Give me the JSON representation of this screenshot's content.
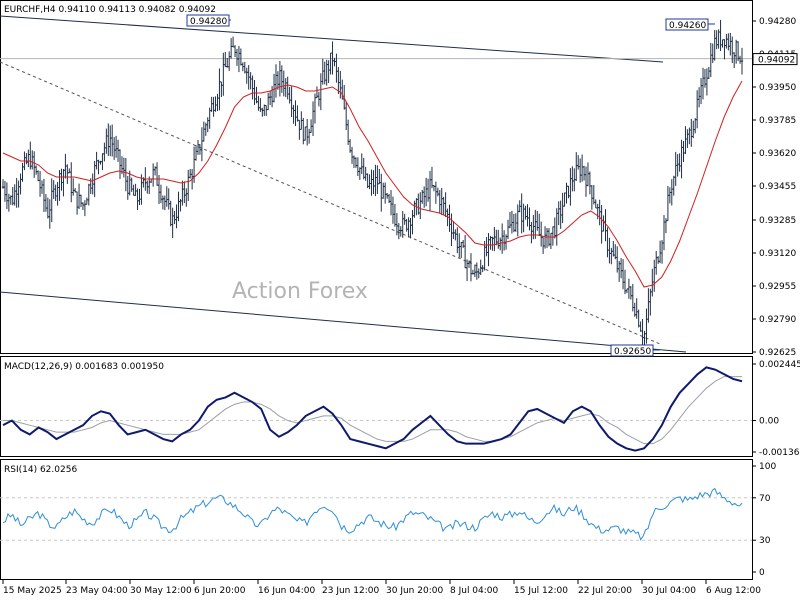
{
  "header": {
    "symbol_line": "EURCHF,H4  0.94110 0.94113 0.94082 0.94092"
  },
  "watermark": "Action Forex",
  "colors": {
    "bars": "#1f2f46",
    "ma": "#d11f1f",
    "macd": "#0f1a6b",
    "signal": "#9aa0a6",
    "rsi": "#2f8fd8",
    "grid": "#c8c8c8",
    "price_box": "#1f3a93"
  },
  "chart_data": [
    {
      "type": "bar",
      "panel": "price",
      "title": "EURCHF,H4",
      "ohlc_last": {
        "open": 0.9411,
        "high": 0.94113,
        "low": 0.94082,
        "close": 0.94092
      },
      "ylim": [
        0.92625,
        0.9428
      ],
      "y_ticks": [
        "0.94280",
        "0.94115",
        "0.93950",
        "0.93785",
        "0.93620",
        "0.93455",
        "0.93285",
        "0.93120",
        "0.92955",
        "0.92790",
        "0.92625"
      ],
      "y_tick_values": [
        0.9428,
        0.94115,
        0.9395,
        0.93785,
        0.9362,
        0.93455,
        0.93285,
        0.9312,
        0.92955,
        0.9279,
        0.92625
      ],
      "current_price": "0.94092",
      "annotations": [
        {
          "label": "0.94280",
          "x": "6 Jun 20:00",
          "y": 0.9428
        },
        {
          "label": "0.94260",
          "x": "6 Aug 12:00",
          "y": 0.9426
        },
        {
          "label": "0.92650",
          "x": "30 Jul 04:00",
          "y": 0.9265
        }
      ],
      "close_path": [
        0.9345,
        0.9338,
        0.9352,
        0.936,
        0.9348,
        0.9332,
        0.9346,
        0.9356,
        0.934,
        0.9336,
        0.935,
        0.9362,
        0.937,
        0.9358,
        0.9346,
        0.9338,
        0.9348,
        0.9352,
        0.934,
        0.9328,
        0.9338,
        0.935,
        0.9364,
        0.938,
        0.9392,
        0.9405,
        0.9415,
        0.9408,
        0.9395,
        0.938,
        0.939,
        0.94,
        0.9395,
        0.938,
        0.937,
        0.9385,
        0.94,
        0.941,
        0.939,
        0.9365,
        0.9355,
        0.9345,
        0.9348,
        0.9338,
        0.933,
        0.9325,
        0.9332,
        0.9338,
        0.9345,
        0.934,
        0.933,
        0.9318,
        0.9308,
        0.93,
        0.931,
        0.9318,
        0.932,
        0.9325,
        0.9332,
        0.933,
        0.9322,
        0.9318,
        0.9325,
        0.9338,
        0.935,
        0.9355,
        0.9345,
        0.933,
        0.9315,
        0.9305,
        0.9295,
        0.9285,
        0.927,
        0.93,
        0.932,
        0.9345,
        0.936,
        0.937,
        0.9385,
        0.9402,
        0.9418,
        0.942,
        0.9415,
        0.941
      ],
      "ma_path": [
        0.9362,
        0.936,
        0.9358,
        0.9358,
        0.9356,
        0.9352,
        0.935,
        0.935,
        0.935,
        0.9349,
        0.9348,
        0.935,
        0.9352,
        0.9353,
        0.9352,
        0.935,
        0.9349,
        0.9349,
        0.9349,
        0.9348,
        0.9347,
        0.9348,
        0.9352,
        0.9358,
        0.9366,
        0.9375,
        0.9385,
        0.939,
        0.9392,
        0.9392,
        0.9393,
        0.9395,
        0.9396,
        0.9395,
        0.9393,
        0.9393,
        0.9394,
        0.9395,
        0.9392,
        0.9384,
        0.9375,
        0.9368,
        0.936,
        0.9352,
        0.9346,
        0.934,
        0.9336,
        0.9334,
        0.9333,
        0.9332,
        0.933,
        0.9326,
        0.9322,
        0.9317,
        0.9316,
        0.9316,
        0.9317,
        0.9318,
        0.932,
        0.9321,
        0.9321,
        0.932,
        0.932,
        0.9323,
        0.9327,
        0.9331,
        0.9333,
        0.933,
        0.9325,
        0.9318,
        0.931,
        0.9303,
        0.9295,
        0.9296,
        0.93,
        0.9308,
        0.9318,
        0.933,
        0.9342,
        0.9355,
        0.9368,
        0.938,
        0.939,
        0.9398
      ]
    },
    {
      "type": "line",
      "panel": "macd",
      "title": "MACD(12,26,9) 0.001683 0.001950",
      "ylim": [
        -0.00136,
        0.002445
      ],
      "y_ticks": [
        "0.002445",
        "0.00",
        "-0.00136"
      ],
      "y_tick_values": [
        0.002445,
        0,
        -0.00136
      ],
      "series": [
        {
          "name": "MACD",
          "values": [
            -0.0002,
            0.0,
            -0.0004,
            -0.0006,
            -0.0003,
            -0.0005,
            -0.0008,
            -0.0006,
            -0.0004,
            -0.0002,
            0.0002,
            0.0004,
            0.0003,
            -0.0002,
            -0.0006,
            -0.0005,
            -0.0004,
            -0.0006,
            -0.0008,
            -0.0009,
            -0.0006,
            -0.0004,
            0.0,
            0.0006,
            0.0009,
            0.001,
            0.0012,
            0.001,
            0.0008,
            0.0005,
            -0.0004,
            -0.0007,
            -0.0005,
            -0.0002,
            0.0002,
            0.0004,
            0.0006,
            0.0003,
            -0.0002,
            -0.0008,
            -0.0009,
            -0.001,
            -0.0011,
            -0.0012,
            -0.001,
            -0.0008,
            -0.0004,
            -0.0001,
            0.0002,
            -0.0002,
            -0.0006,
            -0.0009,
            -0.001,
            -0.001,
            -0.001,
            -0.0009,
            -0.0008,
            -0.0006,
            -0.0001,
            0.0004,
            0.0005,
            0.0003,
            0.0001,
            -0.0001,
            0.0004,
            0.0006,
            0.0004,
            -0.0002,
            -0.0007,
            -0.001,
            -0.0012,
            -0.0013,
            -0.0012,
            -0.0008,
            -0.0002,
            0.0006,
            0.0012,
            0.0016,
            0.002,
            0.0023,
            0.0022,
            0.002,
            0.0018,
            0.0017
          ]
        },
        {
          "name": "Signal",
          "values": [
            0.0,
            0.0,
            -0.0001,
            -0.0002,
            -0.0003,
            -0.0004,
            -0.0005,
            -0.0005,
            -0.0005,
            -0.0004,
            -0.0003,
            -0.0001,
            0.0,
            -0.0001,
            -0.0002,
            -0.0003,
            -0.0004,
            -0.0005,
            -0.0006,
            -0.0006,
            -0.0006,
            -0.0005,
            -0.0004,
            -0.0001,
            0.0002,
            0.0005,
            0.0007,
            0.0008,
            0.0008,
            0.0007,
            0.0005,
            0.0002,
            0.0,
            -0.0001,
            0.0,
            0.0001,
            0.0002,
            0.0002,
            0.0001,
            -0.0002,
            -0.0004,
            -0.0006,
            -0.0008,
            -0.0009,
            -0.0009,
            -0.0009,
            -0.0008,
            -0.0006,
            -0.0004,
            -0.0004,
            -0.0004,
            -0.0005,
            -0.0007,
            -0.0008,
            -0.0009,
            -0.0009,
            -0.0008,
            -0.0007,
            -0.0005,
            -0.0003,
            -0.0001,
            0.0,
            0.0001,
            0.0,
            0.0001,
            0.0002,
            0.0003,
            0.0002,
            -0.0001,
            -0.0003,
            -0.0006,
            -0.0008,
            -0.001,
            -0.001,
            -0.0008,
            -0.0004,
            0.0001,
            0.0006,
            0.001,
            0.0014,
            0.0017,
            0.0019,
            0.0019,
            0.0019
          ]
        }
      ]
    },
    {
      "type": "line",
      "panel": "rsi",
      "title": "RSI(14) 62.0256",
      "ylim": [
        0,
        100
      ],
      "y_ticks": [
        "100",
        "70",
        "30",
        "0"
      ],
      "y_tick_values": [
        100,
        70,
        30,
        0
      ],
      "levels": [
        70,
        30
      ],
      "series": [
        {
          "name": "RSI",
          "values": [
            48,
            54,
            44,
            50,
            56,
            46,
            42,
            52,
            58,
            50,
            46,
            54,
            60,
            52,
            44,
            48,
            56,
            50,
            42,
            40,
            50,
            56,
            62,
            66,
            70,
            68,
            62,
            56,
            46,
            44,
            56,
            60,
            54,
            48,
            46,
            58,
            64,
            60,
            44,
            40,
            46,
            52,
            48,
            44,
            42,
            50,
            56,
            54,
            50,
            44,
            40,
            46,
            44,
            42,
            50,
            56,
            52,
            54,
            58,
            50,
            48,
            56,
            60,
            54,
            62,
            56,
            46,
            40,
            40,
            42,
            38,
            36,
            32,
            56,
            62,
            66,
            70,
            68,
            72,
            74,
            76,
            70,
            66,
            62
          ]
        }
      ]
    }
  ],
  "x_axis": {
    "tick_labels": [
      "15 May 2025",
      "23 May 04:00",
      "30 May 12:00",
      "6 Jun 20:00",
      "16 Jun 04:00",
      "23 Jun 12:00",
      "30 Jun 20:00",
      "8 Jul 04:00",
      "15 Jul 12:00",
      "22 Jul 20:00",
      "30 Jul 04:00",
      "6 Aug 12:00"
    ]
  }
}
